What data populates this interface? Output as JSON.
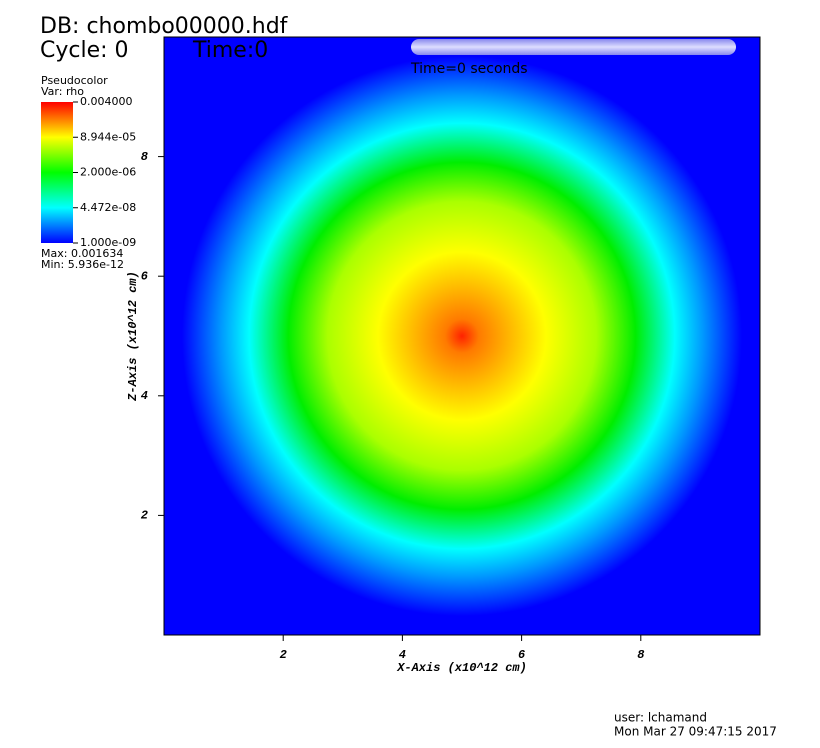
{
  "chart_data": {
    "type": "pseudocolor",
    "db_label": "DB: chombo00000.hdf",
    "cycle_label": "Cycle: 0",
    "time_label": "Time:0",
    "slider_label": "Time=0 seconds",
    "legend": {
      "title": "Pseudocolor",
      "variable": "Var: rho",
      "ticks": [
        {
          "value": 0.004,
          "label": "0.004000"
        },
        {
          "value": 8.944e-05,
          "label": "8.944e-05"
        },
        {
          "value": 2e-06,
          "label": "2.000e-06"
        },
        {
          "value": 4.472e-08,
          "label": "4.472e-08"
        },
        {
          "value": 1e-09,
          "label": "1.000e-09"
        }
      ],
      "log_scale": true,
      "max_label": "Max: 0.001634",
      "min_label": "Min: 5.936e-12"
    },
    "xlabel": "X-Axis (x10^12 cm)",
    "ylabel": "Z-Axis (x10^12 cm)",
    "xlim": [
      0,
      10
    ],
    "ylim": [
      0,
      10
    ],
    "xticks": [
      2,
      4,
      6,
      8
    ],
    "yticks": [
      2,
      4,
      6,
      8
    ],
    "user_label": "user: lchamand",
    "date_label": "Mon Mar 27 09:47:15 2017"
  }
}
